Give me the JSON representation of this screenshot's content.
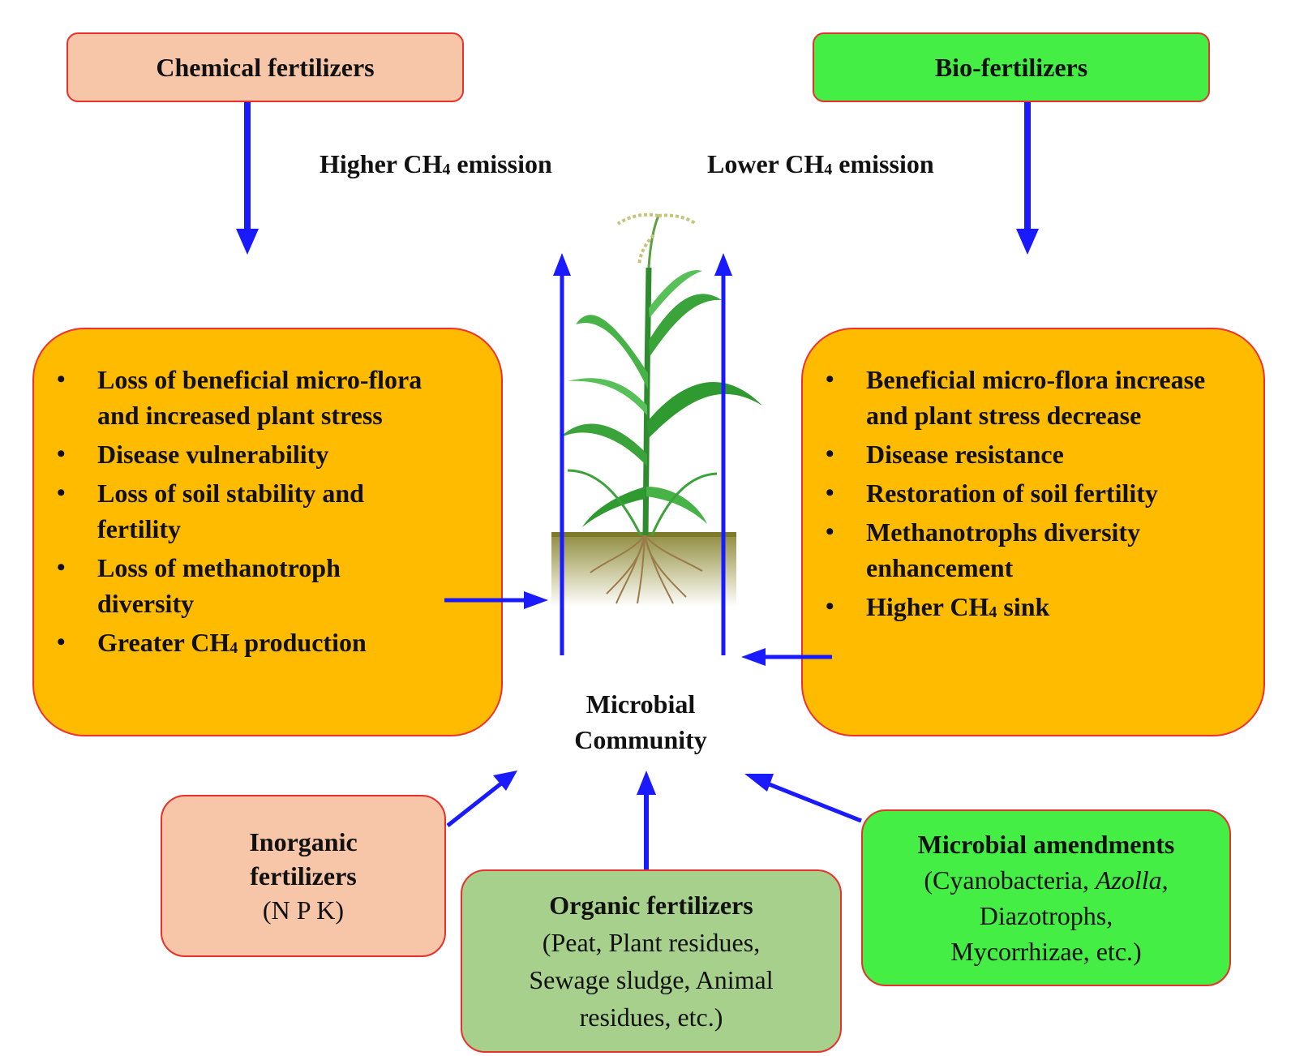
{
  "top_boxes": {
    "chemical": "Chemical fertilizers",
    "bio": "Bio-fertilizers"
  },
  "emission_labels": {
    "higher_prefix": "Higher CH",
    "higher_sub": "4",
    "higher_suffix": " emission",
    "lower_prefix": "Lower CH",
    "lower_sub": "4",
    "lower_suffix": " emission"
  },
  "left_effects": [
    "Loss of beneficial micro-flora and increased plant stress",
    "Disease vulnerability",
    "Loss of soil stability and fertility",
    "Loss of methanotroph diversity",
    {
      "prefix": "Greater CH",
      "sub": "4",
      "suffix": " production"
    }
  ],
  "right_effects": [
    "Beneficial micro-flora increase and plant stress decrease",
    "Disease resistance",
    "Restoration of soil fertility",
    "Methanotrophs diversity enhancement",
    {
      "prefix": "Higher CH",
      "sub": "4",
      "suffix": " sink"
    }
  ],
  "center_label": {
    "line1": "Microbial",
    "line2": "Community"
  },
  "inputs": {
    "inorganic": {
      "title_line1": "Inorganic",
      "title_line2": "fertilizers",
      "detail": "(N P K)"
    },
    "organic": {
      "title": "Organic fertilizers",
      "detail_line1": "(Peat, Plant residues,",
      "detail_line2": "Sewage sludge, Animal",
      "detail_line3": "residues, etc.)"
    },
    "microbial": {
      "title": "Microbial amendments",
      "detail_line1_a": "(Cyanobacteria, ",
      "detail_line1_b": "Azolla",
      "detail_line1_c": ",",
      "detail_line2": "Diazotrophs,",
      "detail_line3": "Mycorrhizae, etc.)"
    }
  },
  "colors": {
    "arrow": "#1a1aff",
    "chemical_fill": "#f7c6a8",
    "bio_fill": "#44ee44",
    "effects_fill": "#ffbb00",
    "organic_fill": "#a8d08d",
    "microbial_fill": "#44ee44",
    "border": "#e8302c"
  }
}
